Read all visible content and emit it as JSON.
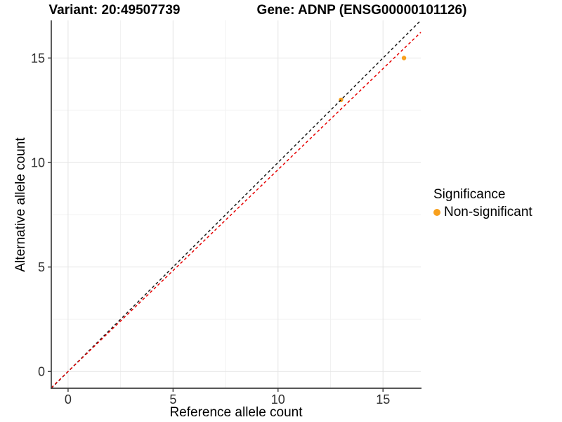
{
  "chart_data": {
    "type": "scatter",
    "title_left": "Variant: 20:49507739",
    "title_right": "Gene: ADNP (ENSG00000101126)",
    "xlabel": "Reference allele count",
    "ylabel": "Alternative allele count",
    "xlim": [
      -0.8,
      16.8
    ],
    "ylim": [
      -0.8,
      16.8
    ],
    "x_ticks": [
      0,
      5,
      10,
      15
    ],
    "y_ticks": [
      0,
      5,
      10,
      15
    ],
    "x_minor_ticks": [
      2.5,
      7.5,
      12.5
    ],
    "y_minor_ticks": [
      2.5,
      7.5,
      12.5
    ],
    "grid": "major+minor",
    "legend_position": "right",
    "points": [
      {
        "x": 13,
        "y": 13,
        "series": "Non-significant"
      },
      {
        "x": 16,
        "y": 15,
        "series": "Non-significant"
      }
    ],
    "point_color": "#F8A01D",
    "point_radius": 3.2,
    "lines": [
      {
        "name": "identity",
        "slope": 1,
        "intercept": 0,
        "color": "#1a1a1a",
        "style": "dashed"
      },
      {
        "name": "allelic-ratio",
        "slope": 0.966,
        "intercept": 0,
        "color": "#e60000",
        "style": "dashed"
      }
    ],
    "legend": {
      "title": "Significance",
      "items": [
        {
          "label": "Non-significant",
          "color": "#F8A01D"
        }
      ]
    },
    "colors": {
      "background": "#ffffff",
      "grid_major": "#e4e4e4",
      "grid_minor": "#f1f1f1",
      "axis": "#3f3f3f",
      "tick": "#333333"
    }
  }
}
